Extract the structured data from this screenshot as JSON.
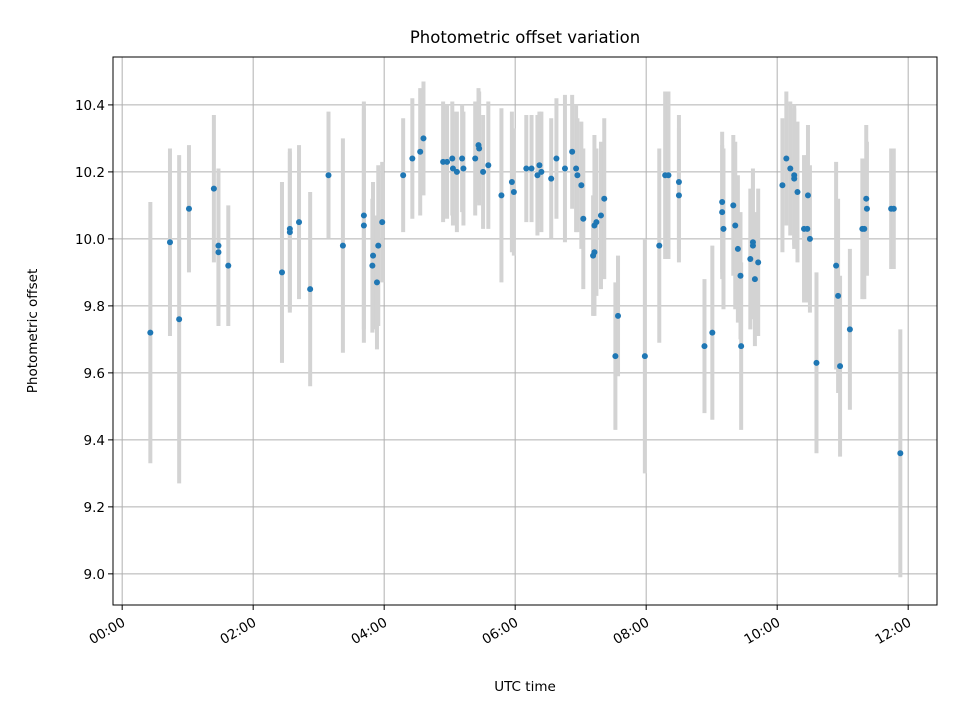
{
  "chart_data": {
    "type": "scatter",
    "title": "Photometric offset variation",
    "xlabel": "UTC time",
    "ylabel": "Photometric offset",
    "xlim_hours": [
      -0.14,
      12.44
    ],
    "ylim": [
      8.907,
      10.543
    ],
    "grid": true,
    "x_ticks": [
      {
        "hour": 0,
        "label": "00:00"
      },
      {
        "hour": 2,
        "label": "02:00"
      },
      {
        "hour": 4,
        "label": "04:00"
      },
      {
        "hour": 6,
        "label": "06:00"
      },
      {
        "hour": 8,
        "label": "08:00"
      },
      {
        "hour": 10,
        "label": "10:00"
      },
      {
        "hour": 12,
        "label": "12:00"
      }
    ],
    "y_ticks": [
      {
        "value": 9.0,
        "label": "9.0"
      },
      {
        "value": 9.2,
        "label": "9.2"
      },
      {
        "value": 9.4,
        "label": "9.4"
      },
      {
        "value": 9.6,
        "label": "9.6"
      },
      {
        "value": 9.8,
        "label": "9.8"
      },
      {
        "value": 10.0,
        "label": "10.0"
      },
      {
        "value": 10.2,
        "label": "10.2"
      },
      {
        "value": 10.4,
        "label": "10.4"
      }
    ],
    "colors": {
      "point": "#1f77b4",
      "errorbar": "#d3d3d3",
      "grid": "#b0b0b0"
    },
    "points_hour_value_err": [
      [
        0.43,
        9.72,
        0.39
      ],
      [
        0.73,
        9.99,
        0.28
      ],
      [
        0.87,
        9.76,
        0.49
      ],
      [
        1.02,
        10.09,
        0.19
      ],
      [
        1.4,
        10.15,
        0.22
      ],
      [
        1.47,
        9.98,
        0.23
      ],
      [
        1.47,
        9.96,
        0.22
      ],
      [
        1.62,
        9.92,
        0.18
      ],
      [
        2.44,
        9.9,
        0.27
      ],
      [
        2.56,
        10.03,
        0.24
      ],
      [
        2.56,
        10.02,
        0.24
      ],
      [
        2.7,
        10.05,
        0.23
      ],
      [
        2.87,
        9.85,
        0.29
      ],
      [
        3.15,
        10.19,
        0.19
      ],
      [
        3.37,
        9.98,
        0.32
      ],
      [
        3.69,
        10.07,
        0.34
      ],
      [
        3.69,
        10.04,
        0.35
      ],
      [
        3.83,
        9.95,
        0.22
      ],
      [
        3.82,
        9.92,
        0.2
      ],
      [
        3.89,
        9.87,
        0.2
      ],
      [
        3.91,
        9.98,
        0.24
      ],
      [
        3.97,
        10.05,
        0.18
      ],
      [
        4.29,
        10.19,
        0.17
      ],
      [
        4.43,
        10.24,
        0.18
      ],
      [
        4.55,
        10.26,
        0.19
      ],
      [
        4.6,
        10.3,
        0.17
      ],
      [
        4.9,
        10.23,
        0.18
      ],
      [
        4.96,
        10.23,
        0.17
      ],
      [
        5.04,
        10.24,
        0.17
      ],
      [
        5.05,
        10.21,
        0.17
      ],
      [
        5.11,
        10.2,
        0.18
      ],
      [
        5.19,
        10.24,
        0.16
      ],
      [
        5.21,
        10.21,
        0.17
      ],
      [
        5.39,
        10.24,
        0.17
      ],
      [
        5.44,
        10.28,
        0.17
      ],
      [
        5.45,
        10.27,
        0.17
      ],
      [
        5.51,
        10.2,
        0.17
      ],
      [
        5.59,
        10.22,
        0.19
      ],
      [
        5.79,
        10.13,
        0.26
      ],
      [
        5.95,
        10.17,
        0.21
      ],
      [
        5.98,
        10.14,
        0.19
      ],
      [
        6.17,
        10.21,
        0.16
      ],
      [
        6.25,
        10.21,
        0.16
      ],
      [
        6.37,
        10.22,
        0.16
      ],
      [
        6.34,
        10.19,
        0.18
      ],
      [
        6.4,
        10.2,
        0.18
      ],
      [
        6.55,
        10.18,
        0.18
      ],
      [
        6.63,
        10.24,
        0.18
      ],
      [
        6.76,
        10.21,
        0.22
      ],
      [
        6.87,
        10.26,
        0.17
      ],
      [
        6.93,
        10.21,
        0.19
      ],
      [
        6.95,
        10.19,
        0.17
      ],
      [
        7.01,
        10.16,
        0.19
      ],
      [
        7.04,
        10.06,
        0.21
      ],
      [
        7.21,
        10.04,
        0.27
      ],
      [
        7.24,
        10.05,
        0.22
      ],
      [
        7.31,
        10.07,
        0.22
      ],
      [
        7.36,
        10.12,
        0.24
      ],
      [
        7.19,
        9.95,
        0.18
      ],
      [
        7.21,
        9.96,
        0.17
      ],
      [
        7.53,
        9.65,
        0.22
      ],
      [
        7.57,
        9.77,
        0.18
      ],
      [
        7.98,
        9.65,
        0.35
      ],
      [
        8.2,
        9.98,
        0.29
      ],
      [
        8.29,
        10.19,
        0.25
      ],
      [
        8.34,
        10.19,
        0.25
      ],
      [
        8.5,
        10.17,
        0.2
      ],
      [
        8.5,
        10.13,
        0.2
      ],
      [
        8.89,
        9.68,
        0.2
      ],
      [
        9.01,
        9.72,
        0.26
      ],
      [
        9.16,
        10.11,
        0.21
      ],
      [
        9.16,
        10.08,
        0.2
      ],
      [
        9.18,
        10.03,
        0.24
      ],
      [
        9.33,
        10.1,
        0.21
      ],
      [
        9.36,
        10.04,
        0.25
      ],
      [
        9.4,
        9.97,
        0.22
      ],
      [
        9.44,
        9.89,
        0.19
      ],
      [
        9.45,
        9.68,
        0.25
      ],
      [
        9.59,
        9.94,
        0.21
      ],
      [
        9.63,
        9.99,
        0.22
      ],
      [
        9.63,
        9.98,
        0.22
      ],
      [
        9.66,
        9.88,
        0.2
      ],
      [
        9.71,
        9.93,
        0.22
      ],
      [
        10.08,
        10.16,
        0.2
      ],
      [
        10.14,
        10.24,
        0.2
      ],
      [
        10.2,
        10.21,
        0.2
      ],
      [
        10.26,
        10.19,
        0.21
      ],
      [
        10.26,
        10.18,
        0.21
      ],
      [
        10.31,
        10.14,
        0.21
      ],
      [
        10.47,
        10.13,
        0.21
      ],
      [
        10.41,
        10.03,
        0.22
      ],
      [
        10.46,
        10.03,
        0.22
      ],
      [
        10.5,
        10.0,
        0.22
      ],
      [
        10.6,
        9.63,
        0.27
      ],
      [
        10.9,
        9.92,
        0.31
      ],
      [
        10.93,
        9.83,
        0.29
      ],
      [
        10.96,
        9.62,
        0.27
      ],
      [
        11.11,
        9.73,
        0.24
      ],
      [
        11.3,
        10.03,
        0.21
      ],
      [
        11.33,
        10.03,
        0.21
      ],
      [
        11.36,
        10.12,
        0.22
      ],
      [
        11.37,
        10.09,
        0.2
      ],
      [
        11.74,
        10.09,
        0.18
      ],
      [
        11.78,
        10.09,
        0.18
      ],
      [
        11.88,
        9.36,
        0.37
      ]
    ]
  }
}
